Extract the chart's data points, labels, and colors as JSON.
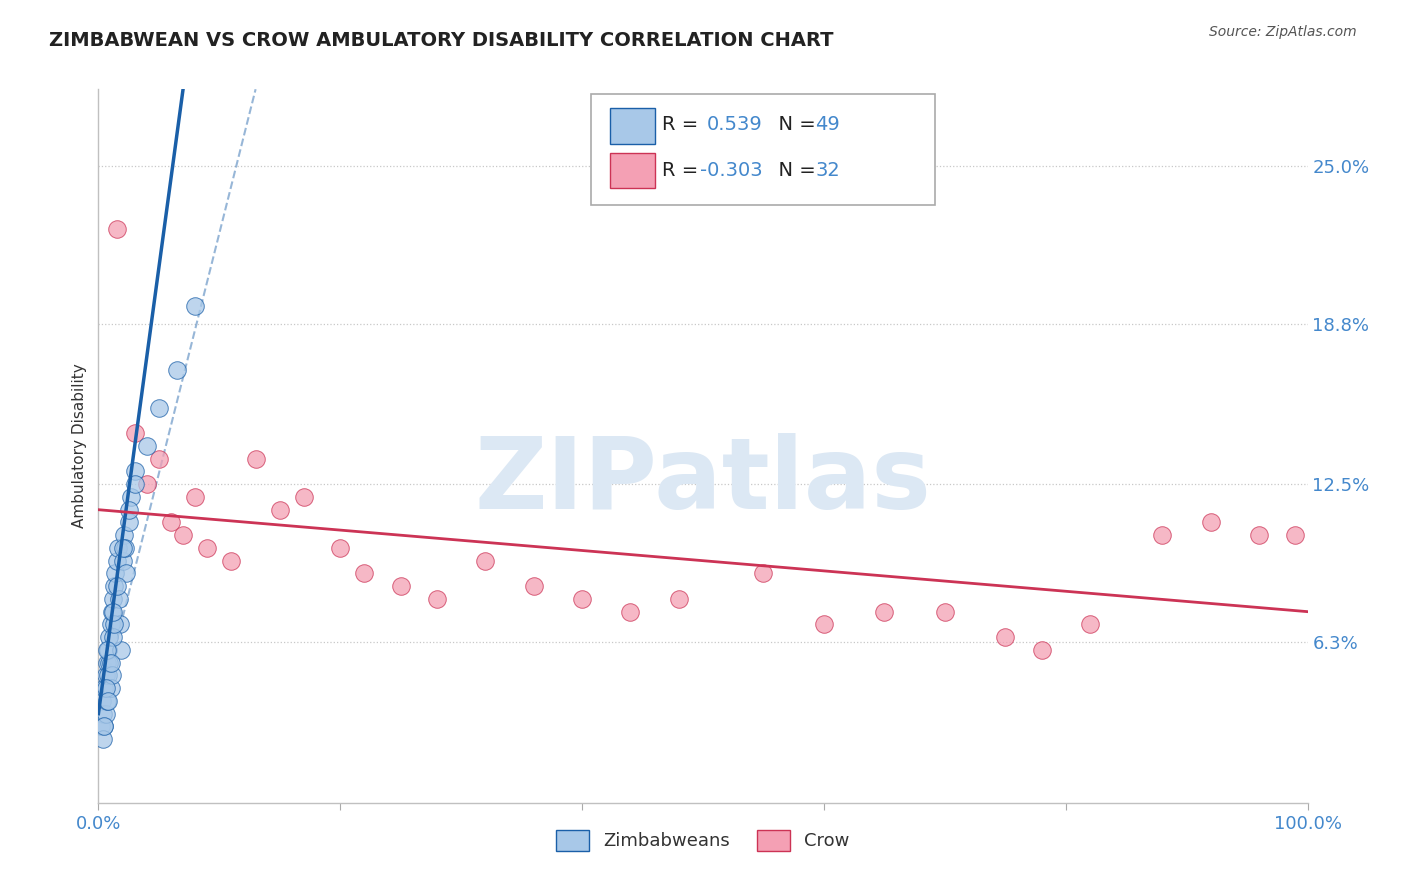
{
  "title": "ZIMBABWEAN VS CROW AMBULATORY DISABILITY CORRELATION CHART",
  "source": "Source: ZipAtlas.com",
  "ylabel": "Ambulatory Disability",
  "xlim": [
    0.0,
    100.0
  ],
  "ylim": [
    0.0,
    28.0
  ],
  "yticks": [
    6.3,
    12.5,
    18.8,
    25.0
  ],
  "ytick_labels": [
    "6.3%",
    "12.5%",
    "18.8%",
    "25.0%"
  ],
  "xticks": [
    0.0,
    20.0,
    40.0,
    60.0,
    80.0,
    100.0
  ],
  "xtick_labels": [
    "0.0%",
    "",
    "",
    "",
    "",
    "100.0%"
  ],
  "r_zimbabwean": 0.539,
  "n_zimbabwean": 49,
  "r_crow": -0.303,
  "n_crow": 32,
  "legend_labels": [
    "Zimbabweans",
    "Crow"
  ],
  "blue_color": "#a8c8e8",
  "pink_color": "#f4a0b4",
  "blue_line_color": "#1a5fa8",
  "pink_line_color": "#cc3355",
  "watermark": "ZIPatlas",
  "watermark_color": "#dce8f4",
  "background_color": "#ffffff",
  "grid_color": "#c8c8c8",
  "title_color": "#222222",
  "axis_label_color": "#333333",
  "tick_label_color": "#4488cc",
  "legend_text_color": "#222222",
  "legend_value_color": "#4488cc",
  "zimbabwean_x": [
    0.2,
    0.3,
    0.4,
    0.5,
    0.6,
    0.7,
    0.8,
    0.9,
    1.0,
    1.1,
    1.2,
    1.3,
    1.4,
    1.5,
    1.6,
    1.7,
    1.8,
    1.9,
    2.0,
    2.1,
    2.2,
    2.3,
    2.5,
    2.7,
    3.0,
    0.5,
    0.6,
    0.7,
    0.8,
    0.9,
    1.0,
    1.1,
    1.2,
    1.3,
    0.4,
    0.5,
    0.6,
    0.7,
    0.8,
    1.0,
    1.2,
    1.5,
    2.0,
    2.5,
    3.0,
    4.0,
    5.0,
    6.5,
    8.0
  ],
  "zimbabwean_y": [
    3.0,
    4.0,
    3.5,
    4.5,
    5.0,
    5.5,
    6.0,
    6.5,
    7.0,
    7.5,
    8.0,
    8.5,
    9.0,
    9.5,
    10.0,
    8.0,
    7.0,
    6.0,
    9.5,
    10.5,
    10.0,
    9.0,
    11.0,
    12.0,
    13.0,
    3.0,
    3.5,
    4.0,
    5.0,
    5.5,
    4.5,
    5.0,
    6.5,
    7.0,
    2.5,
    3.0,
    4.5,
    6.0,
    4.0,
    5.5,
    7.5,
    8.5,
    10.0,
    11.5,
    12.5,
    14.0,
    15.5,
    17.0,
    19.5
  ],
  "crow_x": [
    1.5,
    3.0,
    4.0,
    5.0,
    6.0,
    7.0,
    8.0,
    9.0,
    11.0,
    13.0,
    15.0,
    17.0,
    20.0,
    22.0,
    25.0,
    28.0,
    32.0,
    36.0,
    40.0,
    44.0,
    48.0,
    55.0,
    60.0,
    65.0,
    70.0,
    75.0,
    78.0,
    82.0,
    88.0,
    92.0,
    96.0,
    99.0
  ],
  "crow_y": [
    22.5,
    14.5,
    12.5,
    13.5,
    11.0,
    10.5,
    12.0,
    10.0,
    9.5,
    13.5,
    11.5,
    12.0,
    10.0,
    9.0,
    8.5,
    8.0,
    9.5,
    8.5,
    8.0,
    7.5,
    8.0,
    9.0,
    7.0,
    7.5,
    7.5,
    6.5,
    6.0,
    7.0,
    10.5,
    11.0,
    10.5,
    10.5
  ],
  "blue_trendline_x0": 0.0,
  "blue_trendline_y0": 3.5,
  "blue_trendline_x1": 7.0,
  "blue_trendline_y1": 28.0,
  "blue_dashed_x0": 0.0,
  "blue_dashed_y0": 3.5,
  "blue_dashed_x1": 13.0,
  "blue_dashed_y1": 28.0,
  "pink_trendline_x0": 0.0,
  "pink_trendline_y0": 11.5,
  "pink_trendline_x1": 100.0,
  "pink_trendline_y1": 7.5
}
